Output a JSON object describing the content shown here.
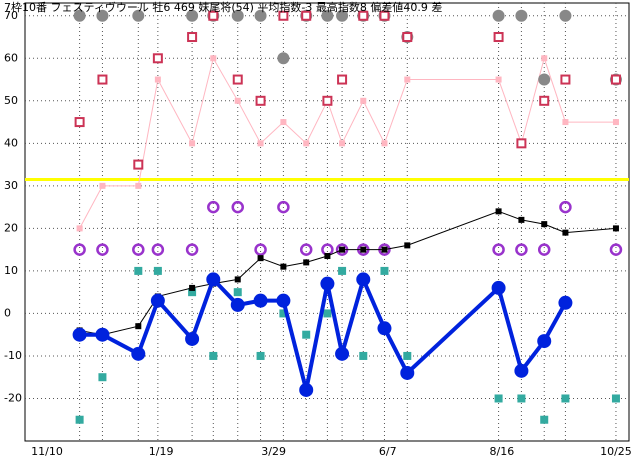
{
  "chart_data": {
    "type": "line",
    "title": "7枠10番 フェスティヴウール 牡6 469 妹尾将(54) 平均指数-3 最高指数8 偏差値40.9 差",
    "x": [
      20,
      34,
      56,
      68,
      89,
      102,
      117,
      131,
      145,
      159,
      172,
      181,
      194,
      207,
      221,
      277,
      291,
      305,
      318,
      349
    ],
    "xlim": [
      -13.5,
      357
    ],
    "xticks": [
      {
        "value": 0,
        "label": "11/10"
      },
      {
        "value": 70,
        "label": "1/19"
      },
      {
        "value": 139,
        "label": "3/29"
      },
      {
        "value": 209,
        "label": "6/7"
      },
      {
        "value": 279,
        "label": "8/16"
      },
      {
        "value": 349,
        "label": "10/25"
      }
    ],
    "ylim": [
      -30,
      73
    ],
    "yticks": [
      -20,
      -10,
      0,
      10,
      20,
      30,
      40,
      50,
      60,
      70
    ],
    "grid": true,
    "reference_line": {
      "value": 31.5,
      "color": "#ffff00"
    },
    "series": [
      {
        "color": "#ffb6c1",
        "line": true,
        "marker": "square-small",
        "values": [
          20,
          30,
          30,
          55,
          40,
          60,
          50,
          40,
          45,
          40,
          50,
          40,
          50,
          40,
          55,
          55,
          40,
          60,
          45,
          45
        ]
      },
      {
        "color": "#888888",
        "line": false,
        "marker": "circle-filled",
        "values": [
          70,
          70,
          70,
          null,
          70,
          70,
          70,
          70,
          60,
          70,
          70,
          70,
          70,
          70,
          65,
          70,
          70,
          55,
          70,
          55
        ]
      },
      {
        "color": "#cc3355",
        "line": false,
        "marker": "square-open",
        "values": [
          45,
          55,
          35,
          60,
          65,
          70,
          55,
          50,
          70,
          70,
          50,
          55,
          70,
          70,
          65,
          65,
          40,
          50,
          55,
          55
        ]
      },
      {
        "color": "#9933cc",
        "line": false,
        "marker": "circle-open",
        "values": [
          15,
          15,
          15,
          15,
          15,
          25,
          25,
          15,
          25,
          15,
          15,
          15,
          15,
          15,
          null,
          15,
          15,
          15,
          25,
          15
        ]
      },
      {
        "color": "#33aaa0",
        "line": false,
        "marker": "square-filled",
        "values": [
          -25,
          -15,
          10,
          10,
          5,
          -10,
          5,
          -10,
          0,
          -5,
          0,
          10,
          -10,
          10,
          -10,
          -20,
          -20,
          -25,
          -20,
          -20
        ]
      },
      {
        "color": "#000000",
        "line": true,
        "marker": "square-small",
        "values": [
          -4,
          -5,
          -3,
          4,
          6,
          7,
          8,
          13,
          11,
          12,
          13.5,
          15,
          15,
          15,
          16,
          24,
          22,
          21,
          19,
          20
        ]
      },
      {
        "color": "#0022dd",
        "line": true,
        "thick": true,
        "marker": "circle-filled",
        "values": [
          -5,
          -5,
          -9.5,
          3,
          -6,
          8,
          2,
          3,
          3,
          -18,
          7,
          -9.5,
          8,
          -3.5,
          -14,
          6,
          -13.5,
          -6.5,
          2.5,
          null
        ]
      }
    ]
  }
}
